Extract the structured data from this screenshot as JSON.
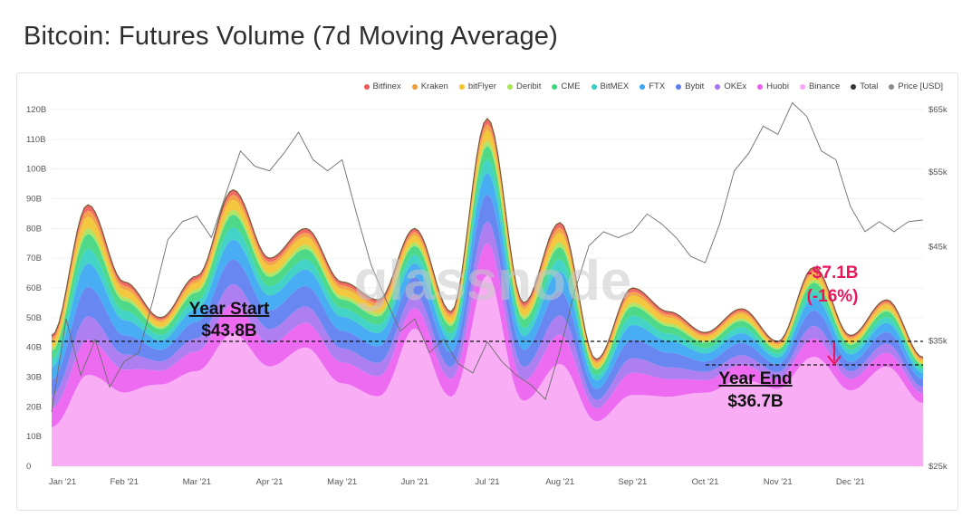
{
  "page": {
    "title": "Bitcoin: Futures Volume (7d Moving Average)"
  },
  "watermark": "glassnode",
  "legend": [
    {
      "name": "Bitfinex",
      "color": "#ef5b5b"
    },
    {
      "name": "Kraken",
      "color": "#f39a3d"
    },
    {
      "name": "bitFlyer",
      "color": "#f2c22e"
    },
    {
      "name": "Deribit",
      "color": "#a7e35b"
    },
    {
      "name": "CME",
      "color": "#3fd67f"
    },
    {
      "name": "BitMEX",
      "color": "#33cfc2"
    },
    {
      "name": "FTX",
      "color": "#38a6f2"
    },
    {
      "name": "Bybit",
      "color": "#5b7df0"
    },
    {
      "name": "OKEx",
      "color": "#a774ef"
    },
    {
      "name": "Huobi",
      "color": "#ea5ef0"
    },
    {
      "name": "Binance",
      "color": "#f7a6f4"
    },
    {
      "name": "Total",
      "color": "#333333"
    },
    {
      "name": "Price [USD]",
      "color": "#8a8a8a"
    }
  ],
  "annotations": {
    "year_start_label": "Year Start",
    "year_start_value": "$43.8B",
    "year_end_label": "Year End",
    "year_end_value": "$36.7B",
    "change_value": "-$7.1B",
    "change_pct": "(-16%)"
  },
  "chart_data": {
    "type": "area",
    "title": "Bitcoin: Futures Volume (7d Moving Average)",
    "x_ticks": [
      "Jan '21",
      "Feb '21",
      "Mar '21",
      "Apr '21",
      "May '21",
      "Jun '21",
      "Jul '21",
      "Aug '21",
      "Sep '21",
      "Oct '21",
      "Nov '21",
      "Dec '21"
    ],
    "y_left": {
      "ticks": [
        "0",
        "10B",
        "20B",
        "30B",
        "40B",
        "50B",
        "60B",
        "70B",
        "80B",
        "90B",
        "100B",
        "110B",
        "120B"
      ],
      "ylim": [
        0,
        120
      ]
    },
    "y_right": {
      "ticks": [
        "$25k",
        "$35k",
        "$45k",
        "$55k",
        "$65k"
      ],
      "ylim": [
        25000,
        65000
      ],
      "scale": "log"
    },
    "x": [
      0,
      0.5,
      1,
      1.5,
      2,
      2.5,
      3,
      3.5,
      4,
      4.5,
      5,
      5.5,
      6,
      6.5,
      7,
      7.5,
      8,
      8.5,
      9,
      9.5,
      10,
      10.5,
      11,
      11.5,
      12
    ],
    "total": [
      44,
      88,
      62,
      50,
      64,
      93,
      70,
      80,
      62,
      56,
      80,
      52,
      117,
      55,
      82,
      36,
      60,
      52,
      45,
      53,
      42,
      67,
      44,
      56,
      36.7
    ],
    "binance_share": [
      0.3,
      0.35,
      0.4,
      0.55,
      0.5,
      0.48,
      0.48,
      0.5,
      0.45,
      0.42,
      0.58,
      0.45,
      0.55,
      0.4,
      0.42,
      0.42,
      0.4,
      0.45,
      0.55,
      0.55,
      0.62,
      0.55,
      0.58,
      0.6,
      0.58
    ],
    "exchange_shares": [
      {
        "name": "Binance",
        "share": 0.42
      },
      {
        "name": "Huobi",
        "share": 0.12
      },
      {
        "name": "OKEx",
        "share": 0.08
      },
      {
        "name": "Bybit",
        "share": 0.1
      },
      {
        "name": "FTX",
        "share": 0.08
      },
      {
        "name": "BitMEX",
        "share": 0.05
      },
      {
        "name": "CME",
        "share": 0.05
      },
      {
        "name": "Deribit",
        "share": 0.02
      },
      {
        "name": "bitFlyer",
        "share": 0.04
      },
      {
        "name": "Kraken",
        "share": 0.02
      },
      {
        "name": "Bitfinex",
        "share": 0.02
      }
    ],
    "price_series": [
      [
        0,
        29000
      ],
      [
        0.2,
        37000
      ],
      [
        0.4,
        32000
      ],
      [
        0.6,
        35000
      ],
      [
        0.8,
        31000
      ],
      [
        1,
        33000
      ],
      [
        1.2,
        34000
      ],
      [
        1.4,
        39000
      ],
      [
        1.6,
        46000
      ],
      [
        1.8,
        48000
      ],
      [
        2,
        49000
      ],
      [
        2.2,
        46000
      ],
      [
        2.4,
        52000
      ],
      [
        2.6,
        58000
      ],
      [
        2.8,
        56000
      ],
      [
        3,
        55000
      ],
      [
        3.2,
        58000
      ],
      [
        3.4,
        61000
      ],
      [
        3.6,
        57000
      ],
      [
        3.8,
        55000
      ],
      [
        4,
        57000
      ],
      [
        4.2,
        49000
      ],
      [
        4.4,
        43000
      ],
      [
        4.6,
        39000
      ],
      [
        4.8,
        36000
      ],
      [
        5,
        37000
      ],
      [
        5.2,
        34000
      ],
      [
        5.4,
        35000
      ],
      [
        5.6,
        33000
      ],
      [
        5.8,
        32000
      ],
      [
        6,
        35000
      ],
      [
        6.2,
        33000
      ],
      [
        6.4,
        32000
      ],
      [
        6.6,
        31000
      ],
      [
        6.8,
        30000
      ],
      [
        7,
        34000
      ],
      [
        7.2,
        40000
      ],
      [
        7.4,
        45000
      ],
      [
        7.6,
        47000
      ],
      [
        7.8,
        46000
      ],
      [
        8,
        47000
      ],
      [
        8.2,
        49000
      ],
      [
        8.4,
        48000
      ],
      [
        8.6,
        46000
      ],
      [
        8.8,
        44000
      ],
      [
        9,
        43000
      ],
      [
        9.2,
        48000
      ],
      [
        9.4,
        55000
      ],
      [
        9.6,
        58000
      ],
      [
        9.8,
        62000
      ],
      [
        10,
        61000
      ],
      [
        10.2,
        66000
      ],
      [
        10.4,
        64000
      ],
      [
        10.6,
        58000
      ],
      [
        10.8,
        57000
      ],
      [
        11,
        50000
      ],
      [
        11.2,
        47000
      ],
      [
        11.4,
        48000
      ],
      [
        11.6,
        47000
      ],
      [
        11.8,
        48000
      ],
      [
        12,
        48500
      ]
    ],
    "year_start_value": 43.8,
    "year_end_value": 36.7,
    "legend_placement": "top-right"
  }
}
